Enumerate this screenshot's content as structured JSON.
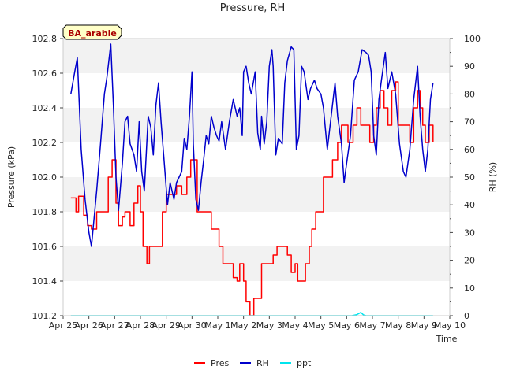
{
  "chart_data": {
    "type": "line",
    "title": "Pressure, RH",
    "xlabel": "Time",
    "ylabel_left": "Pressure (kPa)",
    "ylabel_right": "RH (%)",
    "annotation": "BA_arable",
    "x_ticks": [
      "Apr 25",
      "Apr 26",
      "Apr 27",
      "Apr 28",
      "Apr 29",
      "Apr 30",
      "May 1",
      "May 2",
      "May 3",
      "May 4",
      "May 5",
      "May 6",
      "May 7",
      "May 8",
      "May 9",
      "May 10"
    ],
    "y_left_ticks": [
      "101.2",
      "101.4",
      "101.6",
      "101.8",
      "102.0",
      "102.2",
      "102.4",
      "102.6",
      "102.8"
    ],
    "y_right_ticks": [
      "0",
      "10",
      "20",
      "30",
      "40",
      "50",
      "60",
      "70",
      "80",
      "90",
      "100"
    ],
    "ylim_left": [
      101.2,
      102.8
    ],
    "ylim_right": [
      0,
      100
    ],
    "xlim": [
      0,
      15
    ],
    "grid": "horizontal bands",
    "legend_position": "bottom-center",
    "series": [
      {
        "name": "Pres",
        "axis": "left",
        "color": "#ff0000",
        "points": [
          [
            0.3,
            101.88
          ],
          [
            0.5,
            101.8
          ],
          [
            0.6,
            101.89
          ],
          [
            0.8,
            101.78
          ],
          [
            0.95,
            101.72
          ],
          [
            1.1,
            101.7
          ],
          [
            1.3,
            101.8
          ],
          [
            1.6,
            101.8
          ],
          [
            1.75,
            102.0
          ],
          [
            1.9,
            102.1
          ],
          [
            2.05,
            101.85
          ],
          [
            2.15,
            101.72
          ],
          [
            2.3,
            101.77
          ],
          [
            2.4,
            101.8
          ],
          [
            2.6,
            101.72
          ],
          [
            2.75,
            101.85
          ],
          [
            2.9,
            101.95
          ],
          [
            3.0,
            101.8
          ],
          [
            3.1,
            101.6
          ],
          [
            3.25,
            101.5
          ],
          [
            3.35,
            101.6
          ],
          [
            3.5,
            101.6
          ],
          [
            3.7,
            101.6
          ],
          [
            3.85,
            101.8
          ],
          [
            4.0,
            101.9
          ],
          [
            4.2,
            101.9
          ],
          [
            4.4,
            101.95
          ],
          [
            4.6,
            101.9
          ],
          [
            4.8,
            102.0
          ],
          [
            4.95,
            102.1
          ],
          [
            5.1,
            102.1
          ],
          [
            5.2,
            101.8
          ],
          [
            5.6,
            101.8
          ],
          [
            5.75,
            101.7
          ],
          [
            5.9,
            101.7
          ],
          [
            6.05,
            101.6
          ],
          [
            6.2,
            101.5
          ],
          [
            6.5,
            101.5
          ],
          [
            6.6,
            101.42
          ],
          [
            6.75,
            101.4
          ],
          [
            6.85,
            101.5
          ],
          [
            7.0,
            101.4
          ],
          [
            7.1,
            101.28
          ],
          [
            7.25,
            101.2
          ],
          [
            7.4,
            101.3
          ],
          [
            7.55,
            101.3
          ],
          [
            7.7,
            101.5
          ],
          [
            7.85,
            101.5
          ],
          [
            8.0,
            101.5
          ],
          [
            8.15,
            101.55
          ],
          [
            8.3,
            101.6
          ],
          [
            8.5,
            101.6
          ],
          [
            8.7,
            101.55
          ],
          [
            8.85,
            101.45
          ],
          [
            9.0,
            101.5
          ],
          [
            9.1,
            101.4
          ],
          [
            9.25,
            101.4
          ],
          [
            9.4,
            101.5
          ],
          [
            9.55,
            101.6
          ],
          [
            9.65,
            101.7
          ],
          [
            9.8,
            101.8
          ],
          [
            9.95,
            101.8
          ],
          [
            10.1,
            102.0
          ],
          [
            10.25,
            102.0
          ],
          [
            10.45,
            102.1
          ],
          [
            10.65,
            102.2
          ],
          [
            10.8,
            102.3
          ],
          [
            10.95,
            102.3
          ],
          [
            11.05,
            102.2
          ],
          [
            11.25,
            102.3
          ],
          [
            11.4,
            102.4
          ],
          [
            11.55,
            102.3
          ],
          [
            11.75,
            102.3
          ],
          [
            11.9,
            102.2
          ],
          [
            12.05,
            102.3
          ],
          [
            12.15,
            102.4
          ],
          [
            12.3,
            102.5
          ],
          [
            12.45,
            102.4
          ],
          [
            12.6,
            102.3
          ],
          [
            12.75,
            102.5
          ],
          [
            12.9,
            102.55
          ],
          [
            13.0,
            102.3
          ],
          [
            13.3,
            102.3
          ],
          [
            13.45,
            102.2
          ],
          [
            13.6,
            102.4
          ],
          [
            13.75,
            102.5
          ],
          [
            13.85,
            102.4
          ],
          [
            13.95,
            102.3
          ],
          [
            14.05,
            102.2
          ],
          [
            14.2,
            102.3
          ],
          [
            14.35,
            102.2
          ]
        ]
      },
      {
        "name": "RH",
        "axis": "right",
        "color": "#0000cc",
        "points": [
          [
            0.3,
            80
          ],
          [
            0.45,
            88
          ],
          [
            0.55,
            93
          ],
          [
            0.7,
            60
          ],
          [
            0.85,
            42
          ],
          [
            1.0,
            30
          ],
          [
            1.1,
            25
          ],
          [
            1.3,
            45
          ],
          [
            1.45,
            62
          ],
          [
            1.6,
            80
          ],
          [
            1.7,
            86
          ],
          [
            1.85,
            98
          ],
          [
            1.95,
            76
          ],
          [
            2.05,
            50
          ],
          [
            2.15,
            38
          ],
          [
            2.3,
            55
          ],
          [
            2.4,
            70
          ],
          [
            2.5,
            72
          ],
          [
            2.6,
            62
          ],
          [
            2.75,
            58
          ],
          [
            2.85,
            52
          ],
          [
            2.95,
            70
          ],
          [
            3.05,
            52
          ],
          [
            3.15,
            45
          ],
          [
            3.3,
            72
          ],
          [
            3.4,
            68
          ],
          [
            3.5,
            58
          ],
          [
            3.6,
            76
          ],
          [
            3.7,
            84
          ],
          [
            3.8,
            70
          ],
          [
            3.9,
            58
          ],
          [
            4.05,
            40
          ],
          [
            4.15,
            48
          ],
          [
            4.3,
            42
          ],
          [
            4.4,
            48
          ],
          [
            4.6,
            52
          ],
          [
            4.7,
            64
          ],
          [
            4.8,
            60
          ],
          [
            4.9,
            72
          ],
          [
            5.0,
            88
          ],
          [
            5.05,
            62
          ],
          [
            5.15,
            42
          ],
          [
            5.25,
            38
          ],
          [
            5.35,
            48
          ],
          [
            5.45,
            56
          ],
          [
            5.55,
            65
          ],
          [
            5.65,
            62
          ],
          [
            5.75,
            72
          ],
          [
            5.85,
            68
          ],
          [
            5.95,
            65
          ],
          [
            6.05,
            63
          ],
          [
            6.15,
            70
          ],
          [
            6.3,
            60
          ],
          [
            6.45,
            70
          ],
          [
            6.6,
            78
          ],
          [
            6.75,
            72
          ],
          [
            6.85,
            75
          ],
          [
            6.95,
            65
          ],
          [
            7.0,
            88
          ],
          [
            7.1,
            90
          ],
          [
            7.2,
            84
          ],
          [
            7.3,
            80
          ],
          [
            7.45,
            88
          ],
          [
            7.55,
            66
          ],
          [
            7.65,
            60
          ],
          [
            7.7,
            72
          ],
          [
            7.8,
            62
          ],
          [
            7.9,
            70
          ],
          [
            8.0,
            90
          ],
          [
            8.1,
            96
          ],
          [
            8.15,
            90
          ],
          [
            8.25,
            58
          ],
          [
            8.35,
            64
          ],
          [
            8.5,
            62
          ],
          [
            8.6,
            84
          ],
          [
            8.7,
            92
          ],
          [
            8.85,
            97
          ],
          [
            8.95,
            96
          ],
          [
            9.05,
            60
          ],
          [
            9.15,
            65
          ],
          [
            9.25,
            90
          ],
          [
            9.35,
            88
          ],
          [
            9.5,
            78
          ],
          [
            9.6,
            82
          ],
          [
            9.75,
            85
          ],
          [
            9.85,
            82
          ],
          [
            10.0,
            80
          ],
          [
            10.1,
            75
          ],
          [
            10.25,
            60
          ],
          [
            10.4,
            72
          ],
          [
            10.55,
            84
          ],
          [
            10.65,
            72
          ],
          [
            10.8,
            62
          ],
          [
            10.9,
            48
          ],
          [
            11.0,
            55
          ],
          [
            11.15,
            65
          ],
          [
            11.3,
            85
          ],
          [
            11.45,
            88
          ],
          [
            11.6,
            96
          ],
          [
            11.75,
            95
          ],
          [
            11.85,
            94
          ],
          [
            11.95,
            88
          ],
          [
            12.05,
            65
          ],
          [
            12.15,
            58
          ],
          [
            12.25,
            78
          ],
          [
            12.35,
            85
          ],
          [
            12.5,
            95
          ],
          [
            12.6,
            82
          ],
          [
            12.75,
            88
          ],
          [
            12.9,
            80
          ],
          [
            13.05,
            62
          ],
          [
            13.2,
            52
          ],
          [
            13.3,
            50
          ],
          [
            13.45,
            60
          ],
          [
            13.6,
            78
          ],
          [
            13.75,
            90
          ],
          [
            13.85,
            72
          ],
          [
            13.95,
            60
          ],
          [
            14.05,
            52
          ],
          [
            14.15,
            60
          ],
          [
            14.25,
            78
          ],
          [
            14.35,
            84
          ]
        ]
      },
      {
        "name": "ppt",
        "axis": "right",
        "color": "#00e5ee",
        "points": [
          [
            0.3,
            0
          ],
          [
            11.2,
            0
          ],
          [
            11.4,
            0.4
          ],
          [
            11.55,
            1.2
          ],
          [
            11.65,
            0.3
          ],
          [
            11.75,
            0
          ],
          [
            14.35,
            0
          ]
        ]
      }
    ]
  }
}
